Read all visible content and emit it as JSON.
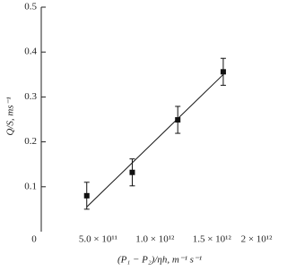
{
  "chart_data": {
    "type": "scatter",
    "x_label": "(P₁ − P₂)/ηh, m⁻¹ s⁻¹",
    "y_label": "Q/S, ms⁻¹",
    "xlim": [
      0,
      2050000000000.0
    ],
    "ylim": [
      0,
      0.5
    ],
    "xticks": [
      0,
      {
        "value": 500000000000.0,
        "label": "5.0 × 10¹¹"
      },
      {
        "value": 1000000000000.0,
        "label": "1.0 × 10¹²"
      },
      {
        "value": 1500000000000.0,
        "label": "1.5 × 10¹²"
      },
      {
        "value": 2000000000000.0,
        "label": "2 × 10¹²"
      }
    ],
    "yticks": [
      0.1,
      0.2,
      0.3,
      0.4,
      0.5
    ],
    "series": [
      {
        "type": "scatter",
        "color": "#111",
        "x": [
          400000000000.0,
          800000000000.0,
          1200000000000.0,
          1600000000000.0
        ],
        "values": [
          0.08,
          0.132,
          0.249,
          0.356
        ],
        "errors": [
          0.03,
          0.03,
          0.03,
          0.03
        ]
      },
      {
        "type": "line",
        "color": "#111",
        "x": [
          400000000000.0,
          1600000000000.0
        ],
        "values": [
          0.055,
          0.35
        ]
      }
    ]
  }
}
